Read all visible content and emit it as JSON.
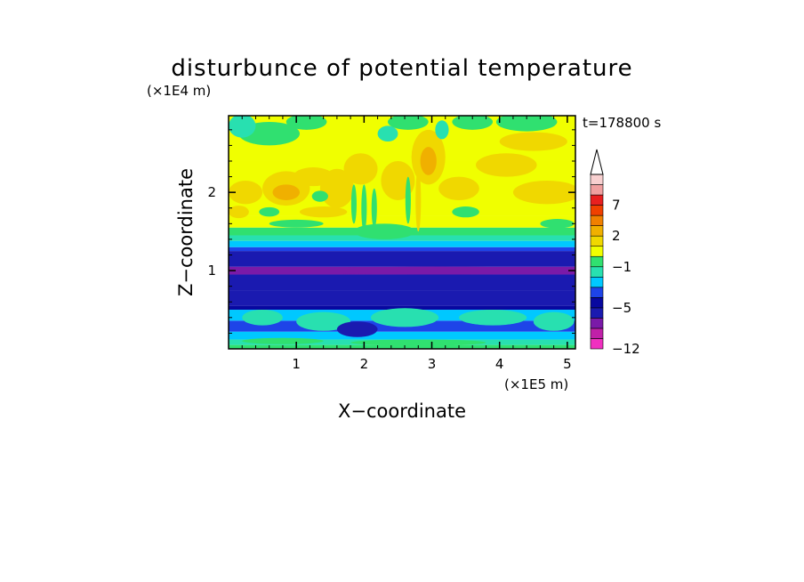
{
  "chart_data": {
    "type": "heatmap",
    "title": "disturbunce of potential temperature",
    "time_label": "t=178800 s",
    "xlabel": "X−coordinate",
    "ylabel": "Z−coordinate",
    "x_unit": "(×1E5 m)",
    "y_unit": "(×1E4 m)",
    "xlim": [
      0,
      5.12
    ],
    "ylim": [
      0,
      2.98
    ],
    "x_ticks": [
      1,
      2,
      3,
      4,
      5
    ],
    "x_tick_labels": [
      "1",
      "2",
      "3",
      "4",
      "5"
    ],
    "y_ticks": [
      1,
      2
    ],
    "y_tick_labels": [
      "1",
      "2"
    ],
    "colorbar": {
      "levels": [
        -12,
        -10,
        -8,
        -6,
        -5,
        -4,
        -3,
        -2,
        -1,
        0,
        1,
        2,
        3,
        5,
        7,
        9,
        11,
        13
      ],
      "labeled_levels": [
        -12,
        -5,
        -1,
        2,
        7
      ],
      "labels": [
        "−12",
        "−5",
        "−1",
        "2",
        "7"
      ],
      "colors": [
        "#f030c0",
        "#c020a8",
        "#7a1aa8",
        "#1a1ab0",
        "#0808a0",
        "#1e44e8",
        "#00c8ff",
        "#28e0b0",
        "#30e070",
        "#f0ff00",
        "#f0d800",
        "#f0b000",
        "#f08000",
        "#f04000",
        "#e82020",
        "#f0a0a0",
        "#f8d0d0"
      ],
      "extend": "max"
    },
    "bands": [
      {
        "z_from": 0.0,
        "z_to": 0.05,
        "value": -0.5
      },
      {
        "z_from": 0.05,
        "z_to": 0.12,
        "value": -1.5
      },
      {
        "z_from": 0.12,
        "z_to": 0.22,
        "value": -2.5
      },
      {
        "z_from": 0.22,
        "z_to": 0.36,
        "value": -3.5
      },
      {
        "z_from": 0.36,
        "z_to": 0.5,
        "value": -2.5
      },
      {
        "z_from": 0.5,
        "z_to": 0.55,
        "value": -4.5
      },
      {
        "z_from": 0.55,
        "z_to": 0.75,
        "value": -5.5
      },
      {
        "z_from": 0.75,
        "z_to": 0.95,
        "value": -5.5
      },
      {
        "z_from": 0.95,
        "z_to": 1.05,
        "value": -6.5
      },
      {
        "z_from": 1.05,
        "z_to": 1.25,
        "value": -5.5
      },
      {
        "z_from": 1.25,
        "z_to": 1.3,
        "value": -3.5
      },
      {
        "z_from": 1.3,
        "z_to": 1.38,
        "value": -2.5
      },
      {
        "z_from": 1.38,
        "z_to": 1.45,
        "value": -1.5
      },
      {
        "z_from": 1.45,
        "z_to": 1.55,
        "value": -0.5
      },
      {
        "z_from": 1.55,
        "z_to": 1.7,
        "value": 0.5
      },
      {
        "z_from": 1.7,
        "z_to": 2.4,
        "value": 0.5
      },
      {
        "z_from": 2.4,
        "z_to": 2.98,
        "value": 0.5
      }
    ],
    "blobs": [
      {
        "x": 0.85,
        "z": 2.05,
        "rx": 0.35,
        "rz": 0.22,
        "value": 1.5
      },
      {
        "x": 0.85,
        "z": 2.0,
        "rx": 0.2,
        "rz": 0.1,
        "value": 2.5
      },
      {
        "x": 0.25,
        "z": 2.0,
        "rx": 0.25,
        "rz": 0.15,
        "value": 1.5
      },
      {
        "x": 0.15,
        "z": 1.75,
        "rx": 0.15,
        "rz": 0.08,
        "value": 1.5
      },
      {
        "x": 1.25,
        "z": 2.2,
        "rx": 0.3,
        "rz": 0.12,
        "value": 1.5
      },
      {
        "x": 1.6,
        "z": 2.05,
        "rx": 0.25,
        "rz": 0.25,
        "value": 1.5
      },
      {
        "x": 1.95,
        "z": 2.3,
        "rx": 0.25,
        "rz": 0.2,
        "value": 1.5
      },
      {
        "x": 2.5,
        "z": 2.15,
        "rx": 0.25,
        "rz": 0.25,
        "value": 1.5
      },
      {
        "x": 2.95,
        "z": 2.45,
        "rx": 0.25,
        "rz": 0.35,
        "value": 1.5
      },
      {
        "x": 2.95,
        "z": 2.4,
        "rx": 0.12,
        "rz": 0.18,
        "value": 2.5
      },
      {
        "x": 3.4,
        "z": 2.05,
        "rx": 0.3,
        "rz": 0.15,
        "value": 1.5
      },
      {
        "x": 4.1,
        "z": 2.35,
        "rx": 0.45,
        "rz": 0.15,
        "value": 1.5
      },
      {
        "x": 4.7,
        "z": 2.0,
        "rx": 0.5,
        "rz": 0.15,
        "value": 1.5
      },
      {
        "x": 4.5,
        "z": 2.65,
        "rx": 0.5,
        "rz": 0.12,
        "value": 1.5
      },
      {
        "x": 1.4,
        "z": 1.75,
        "rx": 0.35,
        "rz": 0.07,
        "value": 1.5
      },
      {
        "x": 0.6,
        "z": 2.75,
        "rx": 0.45,
        "rz": 0.15,
        "value": -0.5
      },
      {
        "x": 0.2,
        "z": 2.85,
        "rx": 0.2,
        "rz": 0.15,
        "value": -1.5
      },
      {
        "x": 1.15,
        "z": 2.9,
        "rx": 0.3,
        "rz": 0.1,
        "value": -0.5
      },
      {
        "x": 2.35,
        "z": 2.75,
        "rx": 0.15,
        "rz": 0.1,
        "value": -1.5
      },
      {
        "x": 2.65,
        "z": 2.9,
        "rx": 0.3,
        "rz": 0.1,
        "value": -0.5
      },
      {
        "x": 3.15,
        "z": 2.8,
        "rx": 0.1,
        "rz": 0.12,
        "value": -1.5
      },
      {
        "x": 3.6,
        "z": 2.9,
        "rx": 0.3,
        "rz": 0.1,
        "value": -0.5
      },
      {
        "x": 4.4,
        "z": 2.9,
        "rx": 0.45,
        "rz": 0.12,
        "value": -0.5
      },
      {
        "x": 0.6,
        "z": 1.75,
        "rx": 0.15,
        "rz": 0.06,
        "value": -0.5
      },
      {
        "x": 1.35,
        "z": 1.95,
        "rx": 0.12,
        "rz": 0.07,
        "value": -0.5
      },
      {
        "x": 3.5,
        "z": 1.75,
        "rx": 0.2,
        "rz": 0.07,
        "value": -0.5
      },
      {
        "x": 4.85,
        "z": 1.6,
        "rx": 0.25,
        "rz": 0.06,
        "value": -0.5
      },
      {
        "x": 1.0,
        "z": 1.6,
        "rx": 0.4,
        "rz": 0.05,
        "value": -0.5
      },
      {
        "x": 2.3,
        "z": 1.5,
        "rx": 0.45,
        "rz": 0.1,
        "value": -0.5
      },
      {
        "x": 2.0,
        "z": 1.8,
        "rx": 0.04,
        "rz": 0.3,
        "value": -0.5
      },
      {
        "x": 2.15,
        "z": 1.8,
        "rx": 0.04,
        "rz": 0.25,
        "value": -0.5
      },
      {
        "x": 1.85,
        "z": 1.85,
        "rx": 0.04,
        "rz": 0.25,
        "value": -0.5
      },
      {
        "x": 2.8,
        "z": 1.9,
        "rx": 0.04,
        "rz": 0.4,
        "value": 1.5
      },
      {
        "x": 2.65,
        "z": 1.9,
        "rx": 0.04,
        "rz": 0.3,
        "value": -0.5
      },
      {
        "x": 1.85,
        "z": 1.0,
        "rx": 1.8,
        "rz": 0.04,
        "value": -7.5
      },
      {
        "x": 3.1,
        "z": 1.0,
        "rx": 1.9,
        "rz": 0.05,
        "value": -7.5
      },
      {
        "x": 0.5,
        "z": 0.4,
        "rx": 0.3,
        "rz": 0.1,
        "value": -1.5
      },
      {
        "x": 1.4,
        "z": 0.35,
        "rx": 0.4,
        "rz": 0.12,
        "value": -1.5
      },
      {
        "x": 2.6,
        "z": 0.4,
        "rx": 0.5,
        "rz": 0.12,
        "value": -1.5
      },
      {
        "x": 3.9,
        "z": 0.4,
        "rx": 0.5,
        "rz": 0.1,
        "value": -1.5
      },
      {
        "x": 4.8,
        "z": 0.35,
        "rx": 0.3,
        "rz": 0.12,
        "value": -1.5
      },
      {
        "x": 1.9,
        "z": 0.25,
        "rx": 0.3,
        "rz": 0.1,
        "value": -5.5
      },
      {
        "x": 0.8,
        "z": 0.1,
        "rx": 0.6,
        "rz": 0.04,
        "value": -0.5
      },
      {
        "x": 2.8,
        "z": 0.08,
        "rx": 1.0,
        "rz": 0.04,
        "value": -0.5
      }
    ]
  }
}
